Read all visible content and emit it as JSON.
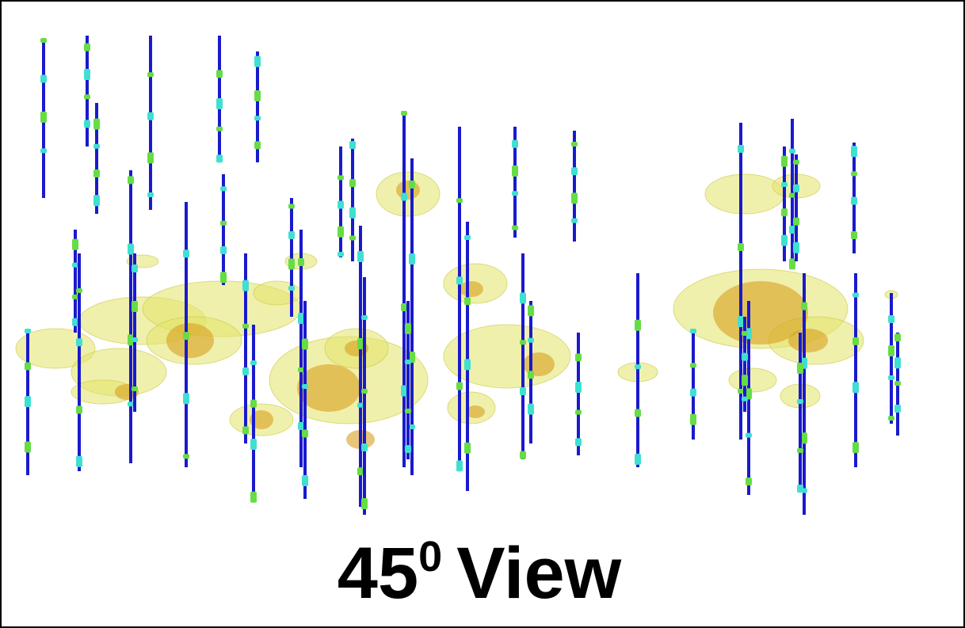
{
  "caption": {
    "number": "45",
    "superscript": "0",
    "word": "View"
  }
}
